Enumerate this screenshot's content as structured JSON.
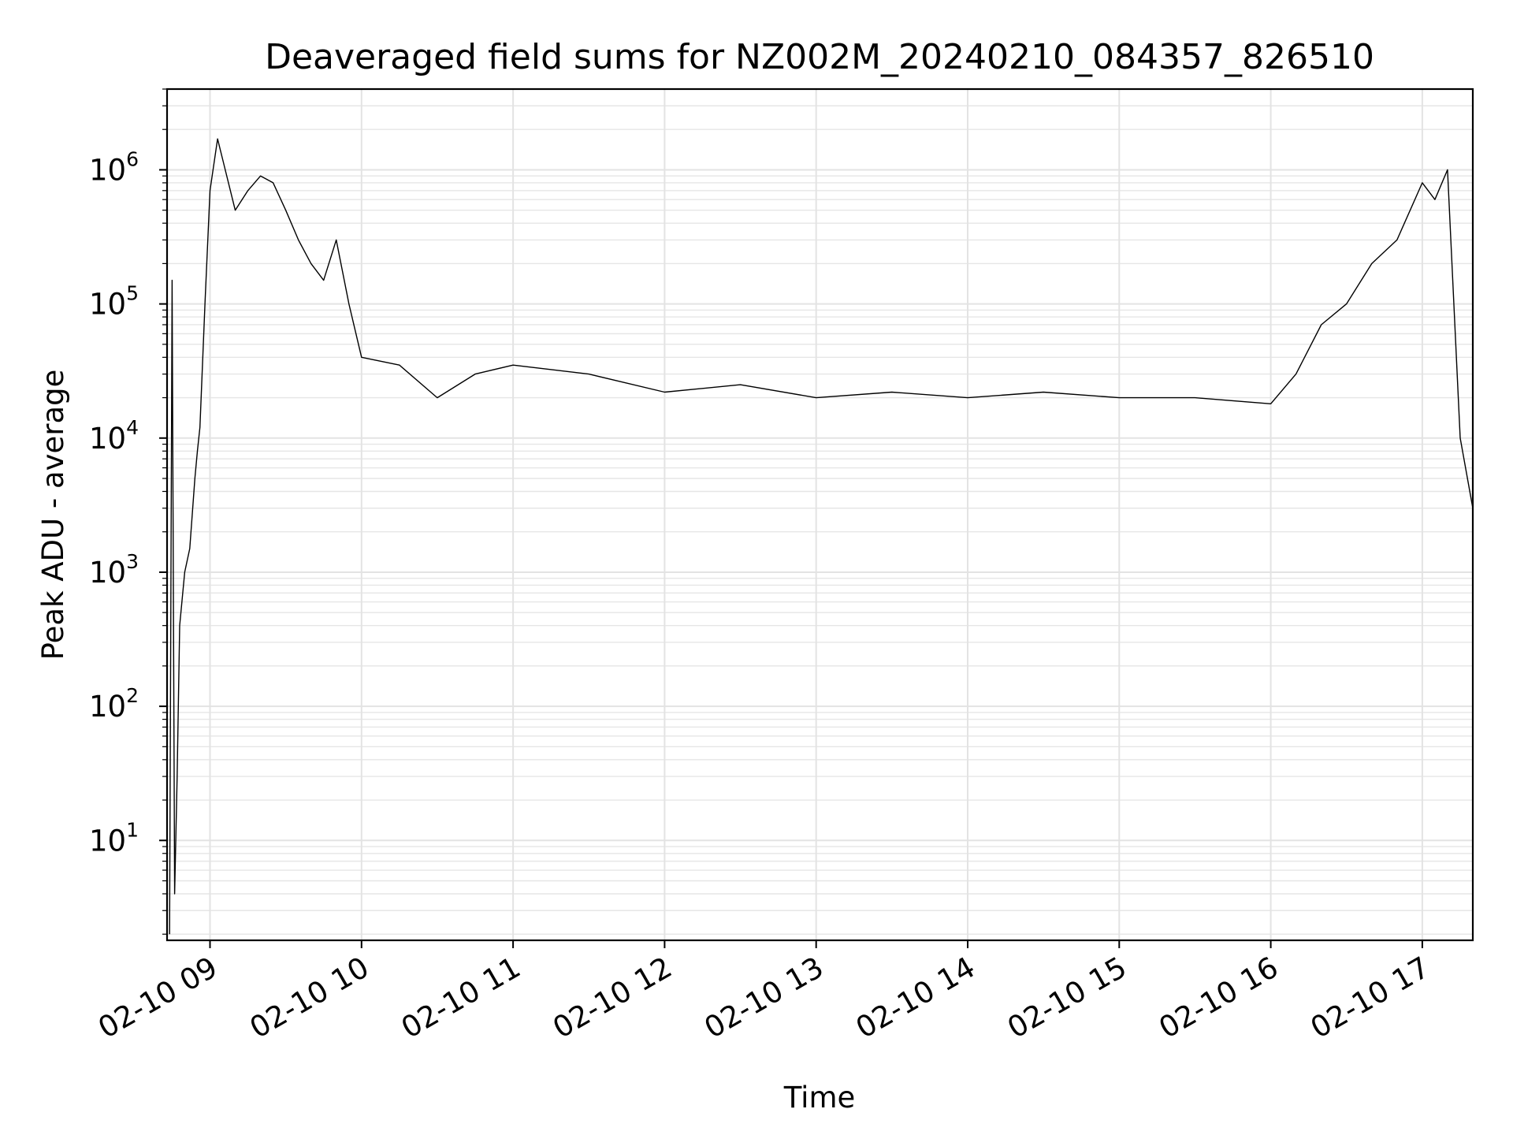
{
  "chart_data": {
    "type": "line",
    "title": "Deaveraged field sums for NZ002M_20240210_084357_826510",
    "xlabel": "Time",
    "ylabel": "Peak ADU - average",
    "yscale": "log",
    "ylim": [
      1.8,
      4000000
    ],
    "xlim": [
      "2024-02-10 08:43",
      "2024-02-10 17:20"
    ],
    "grid": "both (major and minor)",
    "x_tick_labels": [
      "02-10 09",
      "02-10 10",
      "02-10 11",
      "02-10 12",
      "02-10 13",
      "02-10 14",
      "02-10 15",
      "02-10 16",
      "02-10 17"
    ],
    "y_tick_labels": [
      {
        "base": "10",
        "exp": "1"
      },
      {
        "base": "10",
        "exp": "2"
      },
      {
        "base": "10",
        "exp": "3"
      },
      {
        "base": "10",
        "exp": "4"
      },
      {
        "base": "10",
        "exp": "5"
      },
      {
        "base": "10",
        "exp": "6"
      }
    ],
    "series": [
      {
        "color": "#000000",
        "x": [
          "2024-02-10 08:44",
          "2024-02-10 08:45",
          "2024-02-10 08:46",
          "2024-02-10 08:47",
          "2024-02-10 08:48",
          "2024-02-10 08:50",
          "2024-02-10 08:52",
          "2024-02-10 08:54",
          "2024-02-10 08:55",
          "2024-02-10 08:56",
          "2024-02-10 08:58",
          "2024-02-10 09:00",
          "2024-02-10 09:03",
          "2024-02-10 09:05",
          "2024-02-10 09:10",
          "2024-02-10 09:15",
          "2024-02-10 09:20",
          "2024-02-10 09:25",
          "2024-02-10 09:30",
          "2024-02-10 09:35",
          "2024-02-10 09:40",
          "2024-02-10 09:45",
          "2024-02-10 09:50",
          "2024-02-10 09:55",
          "2024-02-10 10:00",
          "2024-02-10 10:15",
          "2024-02-10 10:30",
          "2024-02-10 10:45",
          "2024-02-10 11:00",
          "2024-02-10 11:30",
          "2024-02-10 12:00",
          "2024-02-10 12:30",
          "2024-02-10 13:00",
          "2024-02-10 13:30",
          "2024-02-10 14:00",
          "2024-02-10 14:30",
          "2024-02-10 15:00",
          "2024-02-10 15:30",
          "2024-02-10 16:00",
          "2024-02-10 16:10",
          "2024-02-10 16:20",
          "2024-02-10 16:30",
          "2024-02-10 16:40",
          "2024-02-10 16:50",
          "2024-02-10 17:00",
          "2024-02-10 17:05",
          "2024-02-10 17:10",
          "2024-02-10 17:15",
          "2024-02-10 17:20"
        ],
        "y": [
          2,
          150000,
          4,
          30,
          400,
          1000,
          1500,
          5000,
          8000,
          12000,
          100000,
          700000,
          1700000,
          1200000,
          500000,
          700000,
          900000,
          800000,
          500000,
          300000,
          200000,
          150000,
          300000,
          100000,
          40000,
          35000,
          20000,
          30000,
          35000,
          30000,
          22000,
          25000,
          20000,
          22000,
          20000,
          22000,
          20000,
          20000,
          18000,
          30000,
          70000,
          100000,
          200000,
          300000,
          800000,
          600000,
          1000000,
          10000,
          3000
        ]
      }
    ]
  }
}
